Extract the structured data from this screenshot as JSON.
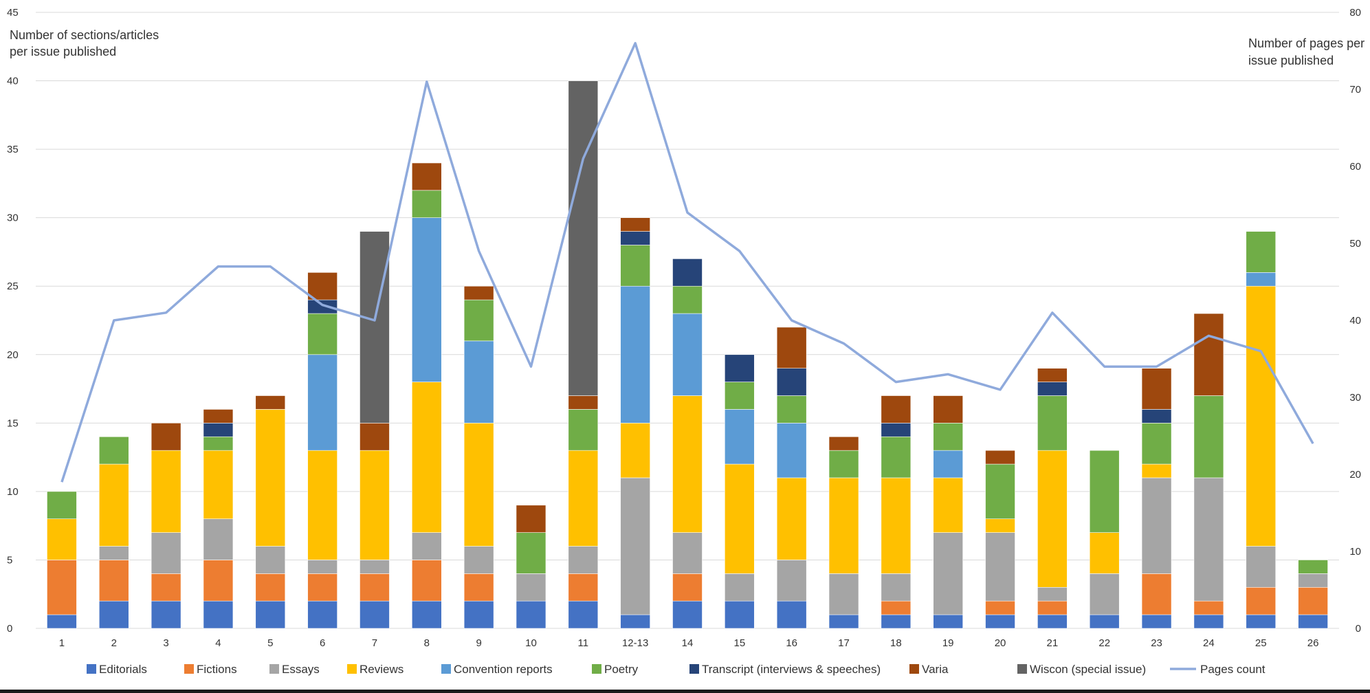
{
  "chart_data": {
    "type": "bar",
    "stacked": true,
    "categories": [
      "1",
      "2",
      "3",
      "4",
      "5",
      "6",
      "7",
      "8",
      "9",
      "10",
      "11",
      "12-13",
      "14",
      "15",
      "16",
      "17",
      "18",
      "19",
      "20",
      "21",
      "22",
      "23",
      "24",
      "25",
      "26"
    ],
    "ylabel_left": "Number of sections/articles per issue published",
    "ylabel_right": "Number of pages per issue published",
    "ylim_left": [
      0,
      45
    ],
    "ylim_right": [
      0,
      80
    ],
    "yticks_left": [
      0,
      5,
      10,
      15,
      20,
      25,
      30,
      35,
      40,
      45
    ],
    "yticks_right": [
      0,
      10,
      20,
      30,
      40,
      50,
      60,
      70,
      80
    ],
    "grid": true,
    "legend_position": "bottom",
    "series": [
      {
        "name": "Editorials",
        "color": "#4472C4",
        "values": [
          1,
          2,
          2,
          2,
          2,
          2,
          2,
          2,
          2,
          2,
          2,
          1,
          2,
          2,
          2,
          1,
          1,
          1,
          1,
          1,
          1,
          1,
          1,
          1,
          1
        ]
      },
      {
        "name": "Fictions",
        "color": "#ED7D31",
        "values": [
          4,
          3,
          2,
          3,
          2,
          2,
          2,
          3,
          2,
          0,
          2,
          0,
          2,
          0,
          0,
          0,
          1,
          0,
          1,
          1,
          0,
          3,
          1,
          2,
          2
        ]
      },
      {
        "name": "Essays",
        "color": "#A5A5A5",
        "values": [
          0,
          1,
          3,
          3,
          2,
          1,
          1,
          2,
          2,
          2,
          2,
          10,
          3,
          2,
          3,
          3,
          2,
          6,
          5,
          1,
          3,
          7,
          9,
          3,
          1
        ]
      },
      {
        "name": "Reviews",
        "color": "#FFC000",
        "values": [
          3,
          6,
          6,
          5,
          10,
          8,
          8,
          11,
          9,
          0,
          7,
          4,
          10,
          8,
          6,
          7,
          7,
          4,
          1,
          10,
          3,
          1,
          0,
          19,
          0
        ]
      },
      {
        "name": "Convention reports",
        "color": "#5B9BD5",
        "values": [
          0,
          0,
          0,
          0,
          0,
          7,
          0,
          12,
          6,
          0,
          0,
          10,
          6,
          4,
          4,
          0,
          0,
          2,
          0,
          0,
          0,
          0,
          0,
          1,
          0
        ]
      },
      {
        "name": "Poetry",
        "color": "#70AD47",
        "values": [
          2,
          2,
          0,
          1,
          0,
          3,
          0,
          2,
          3,
          3,
          3,
          3,
          2,
          2,
          2,
          2,
          3,
          2,
          4,
          4,
          6,
          3,
          6,
          3,
          1
        ]
      },
      {
        "name": "Transcript (interviews & speeches)",
        "color": "#264478",
        "values": [
          0,
          0,
          0,
          1,
          0,
          1,
          0,
          0,
          0,
          0,
          0,
          1,
          2,
          2,
          2,
          0,
          1,
          0,
          0,
          1,
          0,
          1,
          0,
          0,
          0
        ]
      },
      {
        "name": "Varia",
        "color": "#9E480E",
        "values": [
          0,
          0,
          2,
          1,
          1,
          2,
          2,
          2,
          1,
          2,
          1,
          1,
          0,
          0,
          3,
          1,
          2,
          2,
          1,
          1,
          0,
          3,
          6,
          0,
          0
        ]
      },
      {
        "name": "Wiscon (special issue)",
        "color": "#636363",
        "values": [
          0,
          0,
          0,
          0,
          0,
          0,
          14,
          0,
          0,
          0,
          23,
          0,
          0,
          0,
          0,
          0,
          0,
          0,
          0,
          0,
          0,
          0,
          0,
          0,
          0
        ]
      }
    ],
    "line_series": {
      "name": "Pages count",
      "color": "#8FAADC",
      "axis": "right",
      "values": [
        19,
        40,
        41,
        47,
        47,
        42,
        40,
        71,
        49,
        34,
        61,
        76,
        54,
        49,
        40,
        37,
        32,
        33,
        31,
        41,
        34,
        34,
        38,
        36,
        24
      ]
    }
  }
}
